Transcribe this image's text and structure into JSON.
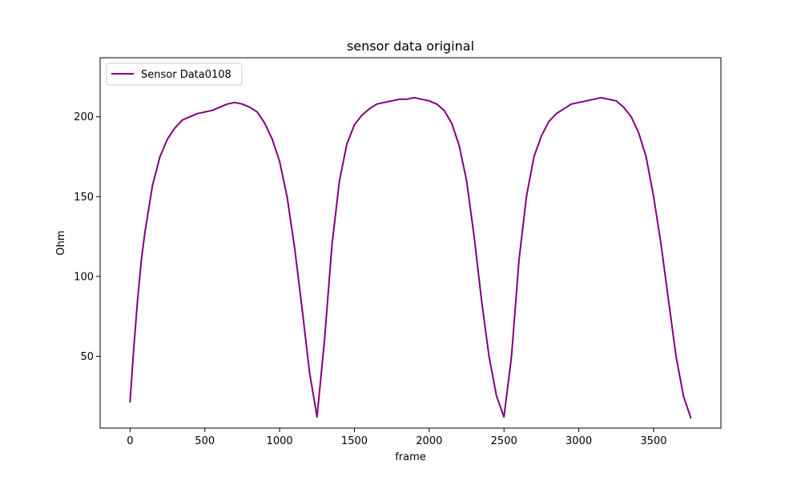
{
  "chart_data": {
    "type": "line",
    "title": "sensor data original",
    "xlabel": "frame",
    "ylabel": "Ohm",
    "xlim": [
      -200,
      3950
    ],
    "ylim": [
      5,
      237
    ],
    "xticks": [
      0,
      500,
      1000,
      1500,
      2000,
      2500,
      3000,
      3500
    ],
    "yticks": [
      50,
      100,
      150,
      200
    ],
    "grid": false,
    "legend_position": "top-left",
    "series": [
      {
        "name": "Sensor Data0108",
        "color": "#800080",
        "x": [
          0,
          25,
          50,
          75,
          100,
          150,
          200,
          250,
          300,
          350,
          400,
          450,
          500,
          550,
          600,
          650,
          700,
          750,
          800,
          850,
          900,
          950,
          1000,
          1050,
          1100,
          1150,
          1200,
          1250,
          1300,
          1350,
          1400,
          1450,
          1500,
          1550,
          1600,
          1650,
          1700,
          1750,
          1800,
          1850,
          1900,
          1950,
          2000,
          2050,
          2100,
          2150,
          2200,
          2250,
          2300,
          2350,
          2400,
          2450,
          2500,
          2550,
          2600,
          2650,
          2700,
          2750,
          2800,
          2850,
          2900,
          2950,
          3000,
          3050,
          3100,
          3150,
          3200,
          3250,
          3300,
          3350,
          3400,
          3450,
          3500,
          3550,
          3600,
          3650,
          3700,
          3750
        ],
        "y": [
          21,
          55,
          85,
          110,
          128,
          157,
          175,
          186,
          193,
          198,
          200,
          202,
          203,
          204,
          206,
          208,
          209,
          208,
          206,
          203,
          196,
          186,
          172,
          150,
          118,
          80,
          40,
          12,
          60,
          120,
          160,
          183,
          195,
          201,
          205,
          208,
          209,
          210,
          211,
          211,
          212,
          211,
          210,
          208,
          204,
          196,
          182,
          160,
          125,
          85,
          50,
          25,
          12,
          50,
          110,
          150,
          175,
          188,
          197,
          202,
          205,
          208,
          209,
          210,
          211,
          212,
          211,
          210,
          206,
          200,
          190,
          175,
          150,
          120,
          85,
          50,
          25,
          11
        ]
      }
    ]
  }
}
